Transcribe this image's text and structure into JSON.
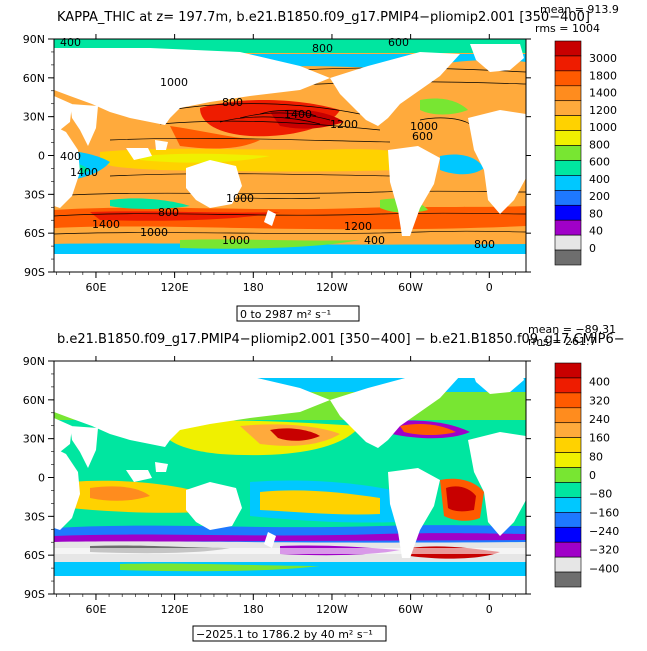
{
  "panel1": {
    "title": "KAPPA_THIC at z= 197.7m, b.e21.B1850.f09_g17.PMIP4−pliomip2.001 [350−400]",
    "stats": {
      "mean": "mean = 913.9",
      "rms": "rms = 1004"
    },
    "range_label": "0 to 2987 m² s⁻¹",
    "colorbar_labels": [
      "3000",
      "1800",
      "1400",
      "1200",
      "1000",
      "800",
      "600",
      "400",
      "200",
      "80",
      "40",
      "0"
    ],
    "colorbar_colors": [
      "#c80000",
      "#ee1c00",
      "#ff5a00",
      "#ff8c1e",
      "#ffaa3c",
      "#ffd200",
      "#f0f000",
      "#78e632",
      "#00e6a0",
      "#00c8ff",
      "#1e78ff",
      "#0000ff",
      "#a000c8",
      "#e6e6e6",
      "#6e6e6e"
    ],
    "contour_labels": [
      "400",
      "600",
      "800",
      "1000",
      "1400",
      "1200",
      "1000",
      "800",
      "400",
      "1400",
      "600",
      "1000",
      "800",
      "1000",
      "1200",
      "1400",
      "1000",
      "400",
      "800"
    ]
  },
  "panel2": {
    "title": "b.e21.B1850.f09_g17.PMIP4−pliomip2.001 [350−400] − b.e21.B1850.f09_g17.CMIP6−",
    "stats": {
      "mean": "mean = −89.31",
      "rms": "rms = 261.7"
    },
    "range_label": "−2025.1 to 1786.2 by 40 m² s⁻¹",
    "colorbar_labels": [
      "400",
      "320",
      "240",
      "160",
      "80",
      "0",
      "−80",
      "−160",
      "−240",
      "−320",
      "−400"
    ],
    "colorbar_colors": [
      "#c80000",
      "#ee1c00",
      "#ff5a00",
      "#ff8c1e",
      "#ffaa3c",
      "#ffd200",
      "#f0f000",
      "#78e632",
      "#00e6a0",
      "#00c8ff",
      "#1e78ff",
      "#0000ff",
      "#a000c8",
      "#e6e6e6",
      "#6e6e6e"
    ]
  },
  "chart_data": [
    {
      "type": "heatmap",
      "title": "KAPPA_THIC at z= 197.7m, b.e21.B1850.f09_g17.PMIP4−pliomip2.001 [350−400]",
      "x_ticks": [
        "60E",
        "120E",
        "180",
        "120W",
        "60W",
        "0"
      ],
      "y_ticks": [
        "90N",
        "60N",
        "30N",
        "0",
        "30S",
        "60S",
        "90S"
      ],
      "colorbar_levels": [
        3000,
        1800,
        1400,
        1200,
        1000,
        800,
        600,
        400,
        200,
        80,
        40,
        0
      ],
      "mean": 913.9,
      "rms": 1004,
      "range": [
        0,
        2987
      ]
    },
    {
      "type": "heatmap",
      "title": "b.e21.B1850.f09_g17.PMIP4−pliomip2.001 [350−400] − b.e21.B1850.f09_g17.CMIP6−",
      "x_ticks": [
        "60E",
        "120E",
        "180",
        "120W",
        "60W",
        "0"
      ],
      "y_ticks": [
        "90N",
        "60N",
        "30N",
        "0",
        "30S",
        "60S",
        "90S"
      ],
      "colorbar_levels": [
        400,
        320,
        240,
        160,
        80,
        0,
        -80,
        -160,
        -240,
        -320,
        -400
      ],
      "mean": -89.31,
      "rms": 261.7,
      "range": [
        -2025.1,
        1786.2
      ],
      "interval": 40
    }
  ]
}
